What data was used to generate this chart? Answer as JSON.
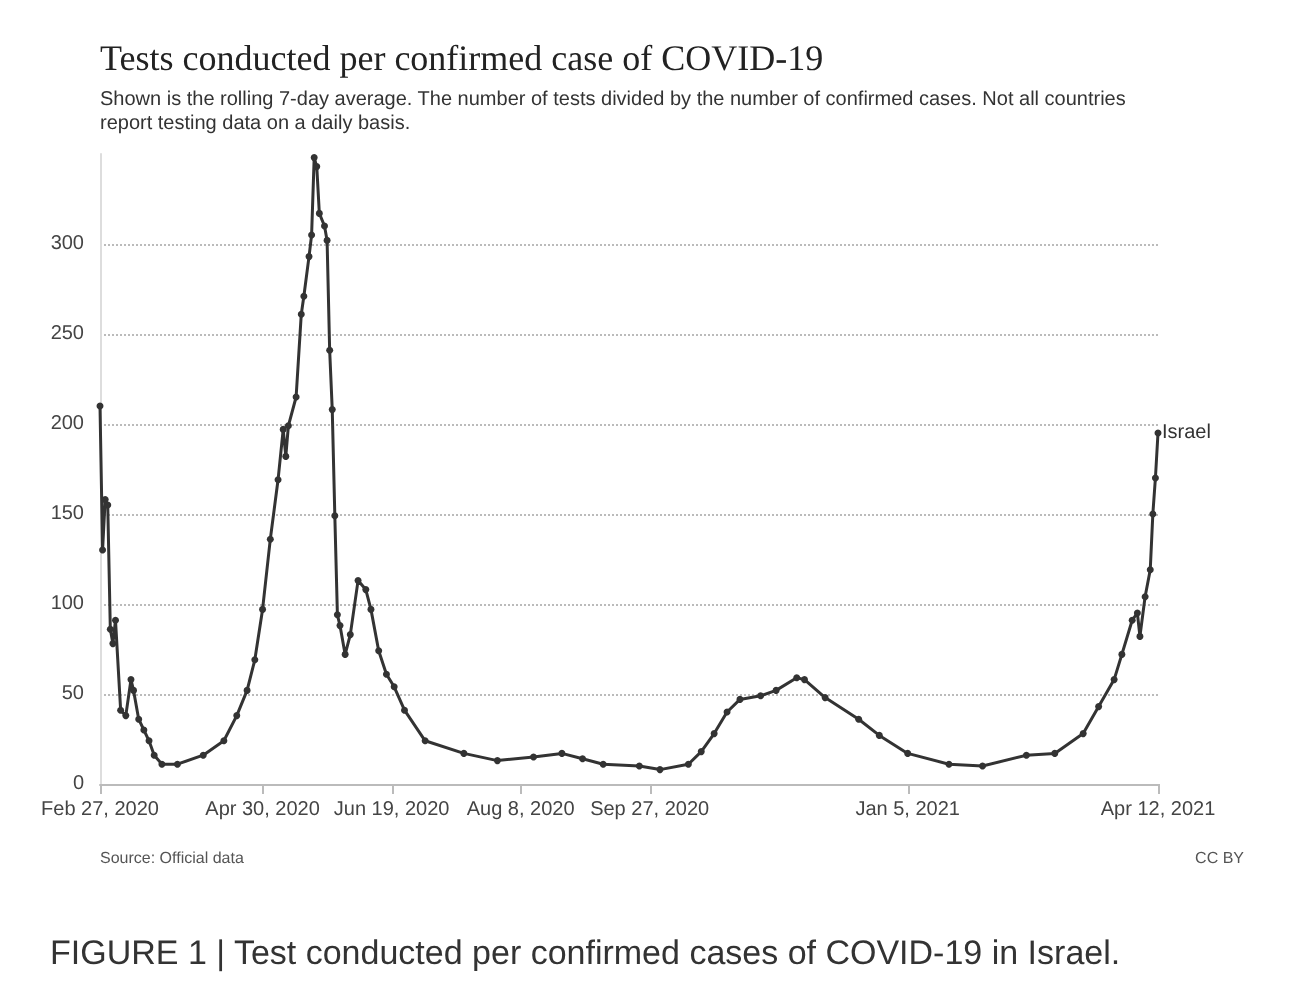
{
  "chart_data": {
    "type": "line",
    "title": "Tests conducted per confirmed case of COVID-19",
    "subtitle": "Shown is the rolling 7-day average. The number of tests divided by the number of confirmed cases. Not all countries report testing data on a daily basis.",
    "annotations": [
      "Source: Official data",
      "CC BY",
      "FIGURE 1 | Test conducted per confirmed cases of COVID-19 in Israel."
    ],
    "x": [
      "2020-02-27",
      "2020-02-28",
      "2020-02-29",
      "2020-03-01",
      "2020-03-02",
      "2020-03-03",
      "2020-03-04",
      "2020-03-06",
      "2020-03-08",
      "2020-03-10",
      "2020-03-11",
      "2020-03-13",
      "2020-03-15",
      "2020-03-17",
      "2020-03-19",
      "2020-03-22",
      "2020-03-28",
      "2020-04-07",
      "2020-04-15",
      "2020-04-20",
      "2020-04-24",
      "2020-04-27",
      "2020-04-30",
      "2020-05-03",
      "2020-05-06",
      "2020-05-08",
      "2020-05-09",
      "2020-05-10",
      "2020-05-13",
      "2020-05-15",
      "2020-05-16",
      "2020-05-18",
      "2020-05-19",
      "2020-05-20",
      "2020-05-21",
      "2020-05-22",
      "2020-05-24",
      "2020-05-25",
      "2020-05-26",
      "2020-05-27",
      "2020-05-28",
      "2020-05-29",
      "2020-05-30",
      "2020-06-01",
      "2020-06-03",
      "2020-06-06",
      "2020-06-09",
      "2020-06-11",
      "2020-06-14",
      "2020-06-17",
      "2020-06-20",
      "2020-06-24",
      "2020-07-02",
      "2020-07-17",
      "2020-07-30",
      "2020-08-13",
      "2020-08-24",
      "2020-09-01",
      "2020-09-09",
      "2020-09-23",
      "2020-10-01",
      "2020-10-12",
      "2020-10-17",
      "2020-10-22",
      "2020-10-27",
      "2020-11-01",
      "2020-11-09",
      "2020-11-15",
      "2020-11-23",
      "2020-11-26",
      "2020-12-04",
      "2020-12-17",
      "2020-12-25",
      "2021-01-05",
      "2021-01-21",
      "2021-02-03",
      "2021-02-20",
      "2021-03-03",
      "2021-03-14",
      "2021-03-20",
      "2021-03-26",
      "2021-03-29",
      "2021-04-02",
      "2021-04-04",
      "2021-04-05",
      "2021-04-07",
      "2021-04-09",
      "2021-04-10",
      "2021-04-11",
      "2021-04-12"
    ],
    "series": [
      {
        "name": "Israel",
        "color": "#333333",
        "values": [
          210,
          130,
          158,
          155,
          86,
          78,
          91,
          41,
          38,
          58,
          52,
          36,
          30,
          24,
          16,
          11,
          11,
          16,
          24,
          38,
          52,
          69,
          97,
          136,
          169,
          197,
          182,
          199,
          215,
          261,
          271,
          293,
          305,
          348,
          343,
          317,
          310,
          302,
          241,
          208,
          149,
          94,
          88,
          72,
          83,
          113,
          108,
          97,
          74,
          61,
          54,
          41,
          24,
          17,
          13,
          15,
          17,
          14,
          11,
          10,
          8,
          11,
          18,
          28,
          40,
          47,
          49,
          52,
          59,
          58,
          48,
          36,
          27,
          17,
          11,
          10,
          16,
          17,
          28,
          43,
          58,
          72,
          91,
          95,
          82,
          104,
          119,
          150,
          170,
          195
        ]
      }
    ],
    "xlim": [
      "2020-02-27",
      "2021-04-12"
    ],
    "xticks": [
      {
        "value": "2020-02-27",
        "label": "Feb 27, 2020"
      },
      {
        "value": "2020-04-30",
        "label": "Apr 30, 2020"
      },
      {
        "value": "2020-06-19",
        "label": "Jun 19, 2020"
      },
      {
        "value": "2020-08-08",
        "label": "Aug 8, 2020"
      },
      {
        "value": "2020-09-27",
        "label": "Sep 27, 2020"
      },
      {
        "value": "2021-01-05",
        "label": "Jan 5, 2021"
      },
      {
        "value": "2021-04-12",
        "label": "Apr 12, 2021"
      }
    ],
    "ylim": [
      0,
      350
    ],
    "yticks": [
      0,
      50,
      100,
      150,
      200,
      250,
      300
    ],
    "grid": "y",
    "legend": false,
    "marker": "circle",
    "line_style": "solid"
  }
}
